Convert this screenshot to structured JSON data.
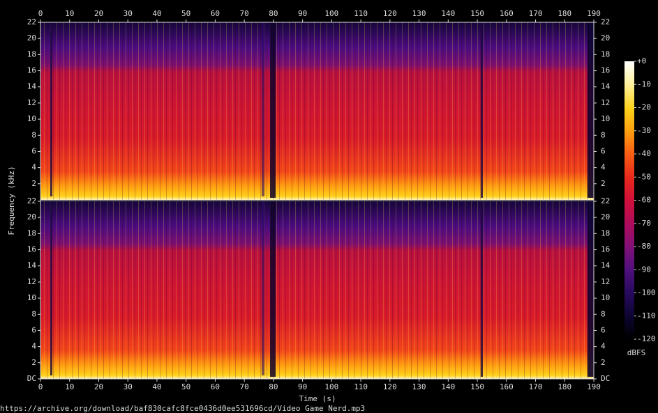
{
  "chart_data": [
    {
      "type": "spectrogram",
      "ylabel": "Frequency (kHz)",
      "xlim": [
        0,
        190
      ],
      "xticks": [
        0,
        10,
        20,
        30,
        40,
        50,
        60,
        70,
        80,
        90,
        100,
        110,
        120,
        130,
        140,
        150,
        160,
        170,
        180,
        190
      ],
      "ylim": [
        0,
        22
      ],
      "yticks": [
        2,
        4,
        6,
        8,
        10,
        12,
        14,
        16,
        18,
        20,
        22
      ]
    },
    {
      "type": "spectrogram",
      "xlabel": "Time (s)",
      "xlim": [
        0,
        190
      ],
      "xticks": [
        0,
        10,
        20,
        30,
        40,
        50,
        60,
        70,
        80,
        90,
        100,
        110,
        120,
        130,
        140,
        150,
        160,
        170,
        180,
        190
      ],
      "ylim": [
        0,
        22
      ],
      "yticks": [
        {
          "value": 0,
          "label": "DC"
        },
        2,
        4,
        6,
        8,
        10,
        12,
        14,
        16,
        18,
        20,
        22
      ]
    }
  ],
  "colorbar": {
    "label": "dBFS",
    "lim": [
      -120,
      0
    ],
    "ticks": [
      {
        "value": 0,
        "label": "+0"
      },
      -10,
      -20,
      -30,
      -40,
      -50,
      -60,
      -70,
      -80,
      -90,
      -100,
      -110,
      -120
    ]
  },
  "source": "https://archive.org/download/baf830cafc8fce0436d0ee531696cd/Video Game Nerd.mp3"
}
